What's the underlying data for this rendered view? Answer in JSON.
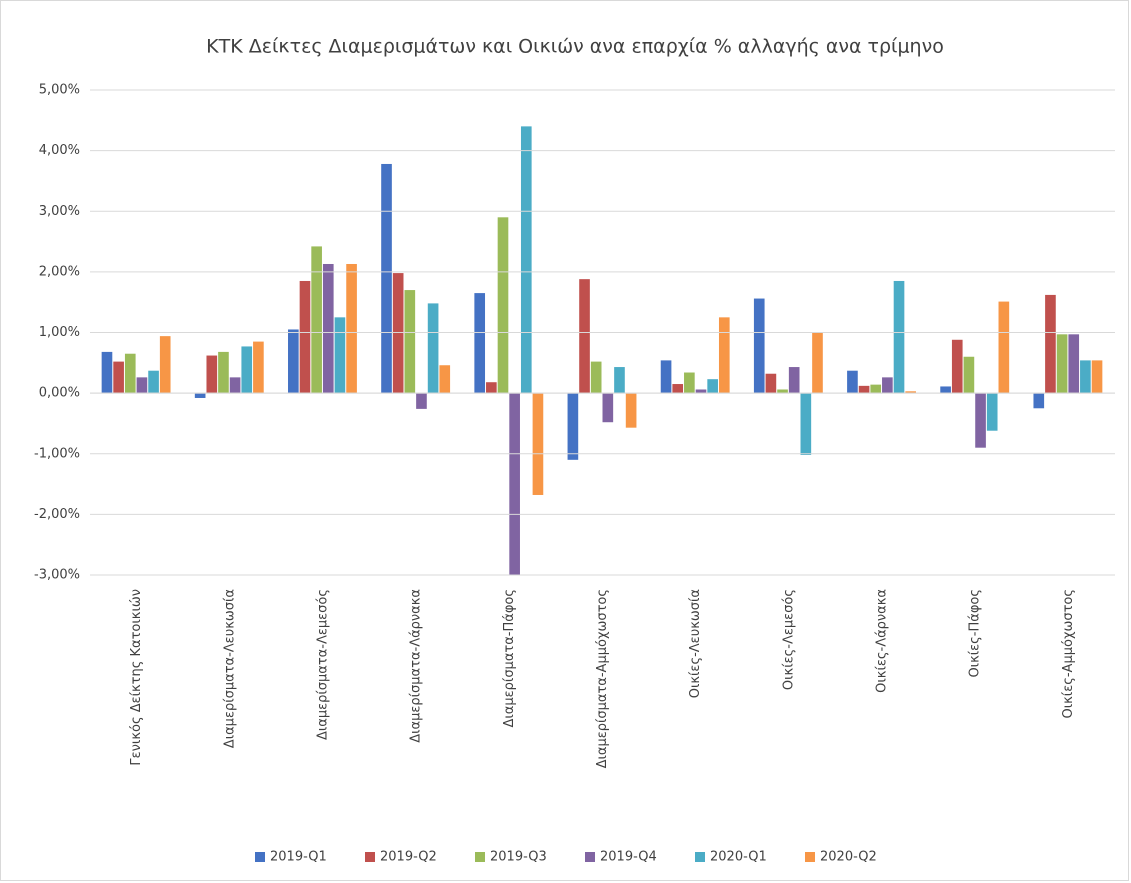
{
  "chart_data": {
    "type": "bar",
    "title": "ΚΤΚ Δείκτες Διαμερισμάτων και Οικιών ανα επαρχία % αλλαγής ανα τρίμηνο",
    "categories": [
      "Γενικός Δείκτης Κατοικιών",
      "Διαμερίσματα-Λευκωσία",
      "Διαμερίσματα-Λεμεσός",
      "Διαμερίσματα-Λάρνακα",
      "Διαμερίσματα-Πάφος",
      "Διαμερίσματα-Αμμόχωστος",
      "Οικίες-Λευκωσία",
      "Οικίες-Λεμεσός",
      "Οικίες-Λάρνακα",
      "Οικίες-Πάφος",
      "Οικίες-Αμμόχωστος"
    ],
    "series": [
      {
        "name": "2019-Q1",
        "color": "#4472c4",
        "values": [
          0.68,
          -0.08,
          1.05,
          3.78,
          1.65,
          -1.1,
          0.54,
          1.56,
          0.37,
          0.11,
          -0.25
        ]
      },
      {
        "name": "2019-Q2",
        "color": "#c0504d",
        "values": [
          0.52,
          0.62,
          1.85,
          1.98,
          0.18,
          1.88,
          0.15,
          0.32,
          0.12,
          0.88,
          1.62
        ]
      },
      {
        "name": "2019-Q3",
        "color": "#9bbb59",
        "values": [
          0.65,
          0.68,
          2.42,
          1.7,
          2.9,
          0.52,
          0.34,
          0.06,
          0.14,
          0.6,
          0.97
        ]
      },
      {
        "name": "2019-Q4",
        "color": "#8064a2",
        "values": [
          0.26,
          0.26,
          2.13,
          -0.26,
          -3.0,
          -0.48,
          0.06,
          0.43,
          0.26,
          -0.9,
          0.97
        ]
      },
      {
        "name": "2020-Q1",
        "color": "#4bacc6",
        "values": [
          0.37,
          0.77,
          1.25,
          1.48,
          4.4,
          0.43,
          0.23,
          -1.02,
          1.85,
          -0.62,
          0.54
        ]
      },
      {
        "name": "2020-Q2",
        "color": "#f79646",
        "values": [
          0.94,
          0.85,
          2.13,
          0.46,
          -1.68,
          -0.57,
          1.25,
          1.0,
          0.03,
          1.51,
          0.54
        ]
      }
    ],
    "ylim": [
      -3,
      5
    ],
    "yticks": [
      {
        "value": -3,
        "label": "-3,00%"
      },
      {
        "value": -2,
        "label": "-2,00%"
      },
      {
        "value": -1,
        "label": "-1,00%"
      },
      {
        "value": 0,
        "label": "0,00%"
      },
      {
        "value": 1,
        "label": "1,00%"
      },
      {
        "value": 2,
        "label": "2,00%"
      },
      {
        "value": 3,
        "label": "3,00%"
      },
      {
        "value": 4,
        "label": "4,00%"
      },
      {
        "value": 5,
        "label": "5,00%"
      }
    ],
    "grid": true,
    "legend": "bottom"
  }
}
